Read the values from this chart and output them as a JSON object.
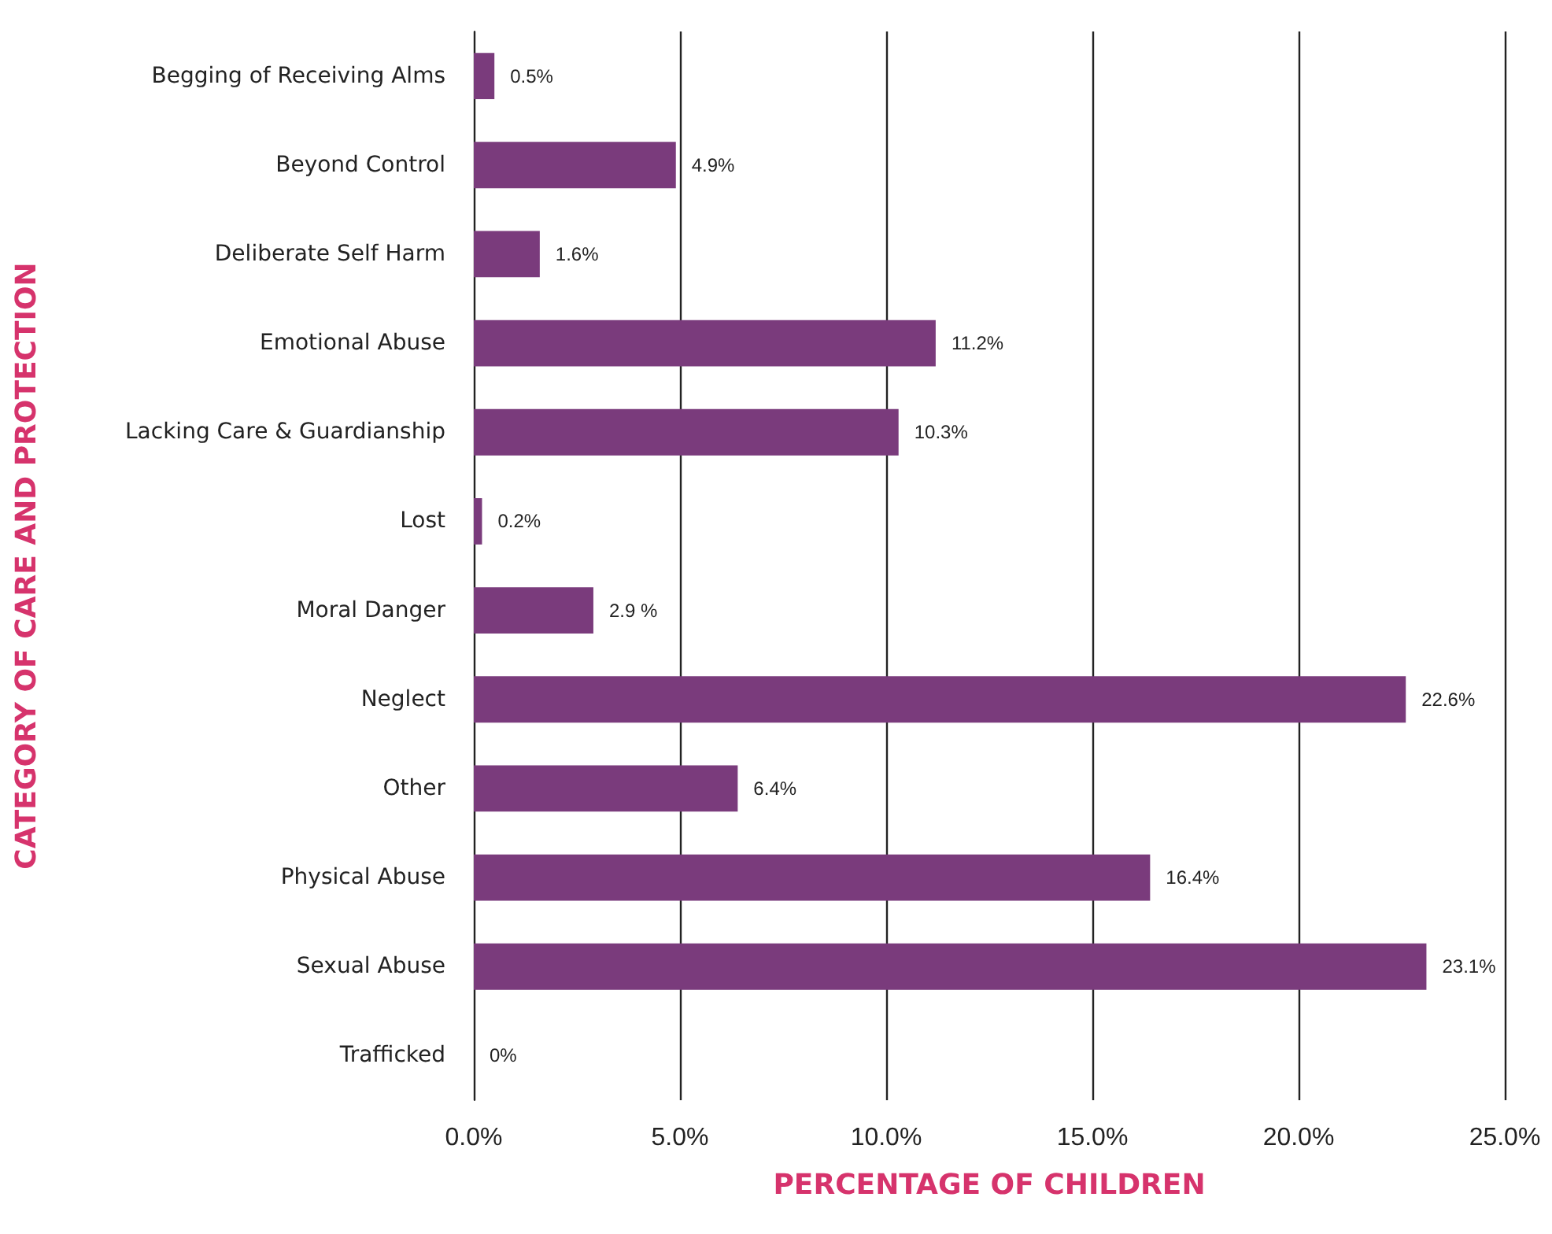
{
  "chart_data": {
    "type": "bar",
    "orientation": "horizontal",
    "xlabel": "PERCENTAGE OF CHILDREN",
    "ylabel": "CATEGORY OF CARE AND PROTECTION",
    "categories": [
      "Begging of Receiving Alms",
      "Beyond Control",
      "Deliberate Self Harm",
      "Emotional Abuse",
      "Lacking Care & Guardianship",
      "Lost",
      "Moral Danger",
      "Neglect",
      "Other",
      "Physical Abuse",
      "Sexual Abuse",
      "Trafficked"
    ],
    "values": [
      0.5,
      4.9,
      1.6,
      11.2,
      10.3,
      0.2,
      2.9,
      22.6,
      6.4,
      16.4,
      23.1,
      0
    ],
    "value_labels": [
      "0.5%",
      "4.9%",
      "1.6%",
      "11.2%",
      "10.3%",
      "0.2%",
      "2.9 %",
      "22.6%",
      "6.4%",
      "16.4%",
      "23.1%",
      "0%"
    ],
    "color": "#7a3b7c",
    "xlim": [
      0,
      25
    ],
    "xticks": [
      {
        "value": 0,
        "label": "0.0%"
      },
      {
        "value": 5,
        "label": "5.0%"
      },
      {
        "value": 10,
        "label": "10.0%"
      },
      {
        "value": 15,
        "label": "15.0%"
      },
      {
        "value": 20,
        "label": "20.0%"
      },
      {
        "value": 25,
        "label": "25.0%"
      }
    ],
    "grid": "x"
  }
}
